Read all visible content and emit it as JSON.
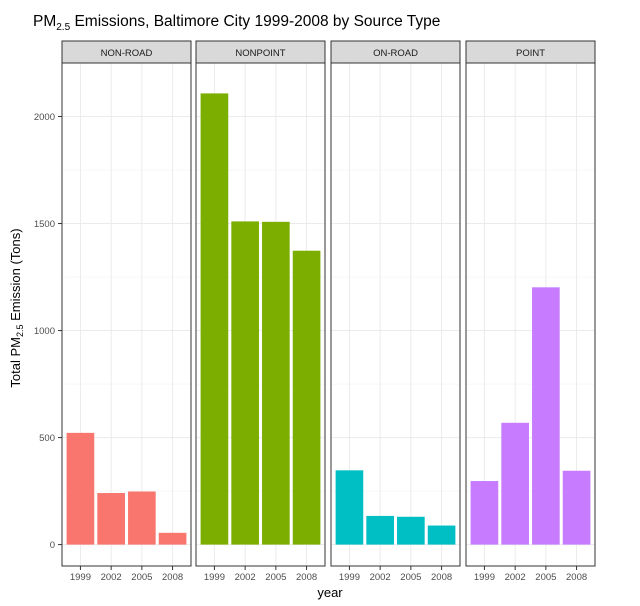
{
  "chart_data": {
    "type": "bar",
    "title": {
      "prefix": "PM",
      "sub": "2.5",
      "rest": " Emissions, Baltimore City 1999-2008 by Source Type"
    },
    "xlabel": "year",
    "ylabel": {
      "prefix": "Total PM",
      "sub": "2.5",
      "rest": " Emission (Tons)"
    },
    "ylim": [
      -100,
      2250
    ],
    "yticks": [
      0,
      500,
      1000,
      1500,
      2000
    ],
    "categories": [
      "1999",
      "2002",
      "2005",
      "2008"
    ],
    "grid": true,
    "facets": [
      {
        "name": "NON-ROAD",
        "color": "#F8766D",
        "values": [
          522,
          241,
          248,
          55
        ]
      },
      {
        "name": "NONPOINT",
        "color": "#7CAE00",
        "values": [
          2108,
          1510,
          1508,
          1373
        ]
      },
      {
        "name": "ON-ROAD",
        "color": "#00BFC4",
        "values": [
          347,
          134,
          130,
          89
        ]
      },
      {
        "name": "POINT",
        "color": "#C77CFF",
        "values": [
          297,
          569,
          1202,
          345
        ]
      }
    ]
  }
}
